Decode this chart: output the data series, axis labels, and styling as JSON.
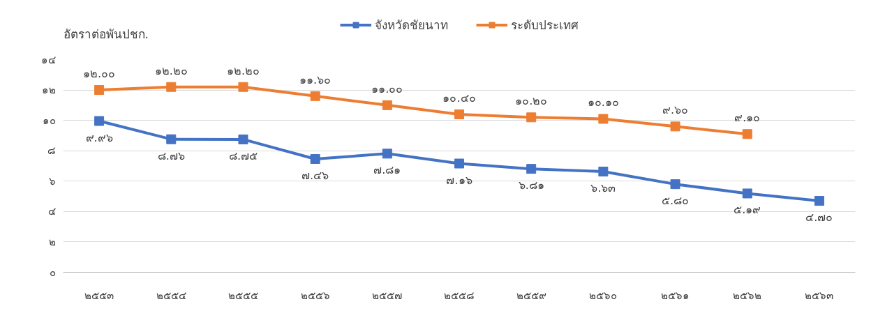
{
  "chart_data": {
    "type": "line",
    "ylabel": "อัตราต่อพันปชก.",
    "categories": [
      "๒๕๕๓",
      "๒๕๕๔",
      "๒๕๕๕",
      "๒๕๕๖",
      "๒๕๕๗",
      "๒๕๕๘",
      "๒๕๕๙",
      "๒๕๖๐",
      "๒๕๖๑",
      "๒๕๖๒",
      "๒๕๖๓"
    ],
    "series": [
      {
        "name": "จังหวัดชัยนาท",
        "color": "#4472c4",
        "values": [
          9.96,
          8.76,
          8.75,
          7.46,
          7.81,
          7.16,
          6.81,
          6.63,
          5.8,
          5.19,
          4.7
        ],
        "value_labels": [
          "๙.๙๖",
          "๘.๗๖",
          "๘.๗๕",
          "๗.๔๖",
          "๗.๘๑",
          "๗.๑๖",
          "๖.๘๑",
          "๖.๖๓",
          "๕.๘๐",
          "๕.๑๙",
          "๔.๗๐"
        ]
      },
      {
        "name": "ระดับประเทศ",
        "color": "#ed7d31",
        "values": [
          12.0,
          12.2,
          12.2,
          11.6,
          11.0,
          10.4,
          10.2,
          10.1,
          9.6,
          9.1,
          null
        ],
        "value_labels": [
          "๑๒.๐๐",
          "๑๒.๒๐",
          "๑๒.๒๐",
          "๑๑.๖๐",
          "๑๑.๐๐",
          "๑๐.๔๐",
          "๑๐.๒๐",
          "๑๐.๑๐",
          "๙.๖๐",
          "๙.๑๐",
          null
        ]
      }
    ],
    "ylim": [
      0,
      14
    ],
    "yticks": [
      {
        "value": 0,
        "label": "๐"
      },
      {
        "value": 2,
        "label": "๒"
      },
      {
        "value": 4,
        "label": "๔"
      },
      {
        "value": 6,
        "label": "๖"
      },
      {
        "value": 8,
        "label": "๘"
      },
      {
        "value": 10,
        "label": "๑๐"
      },
      {
        "value": 12,
        "label": "๑๒"
      },
      {
        "value": 14,
        "label": "๑๔"
      }
    ],
    "grid": "y",
    "legend": "top",
    "marker": "square",
    "line_style": "solid"
  }
}
